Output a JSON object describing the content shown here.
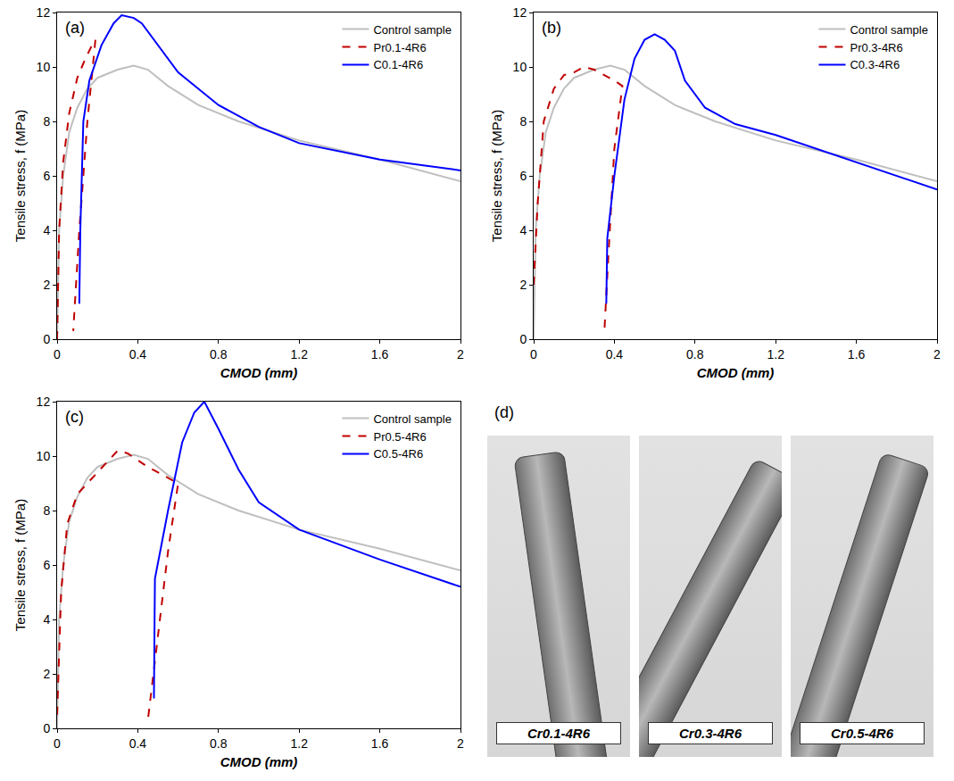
{
  "chart_data": [
    {
      "type": "line",
      "title": "(a)",
      "x_label": "CMOD (mm)",
      "y_label": "Tensile stress, f (MPa)",
      "xlim": [
        0,
        2
      ],
      "xticks": [
        0,
        0.4,
        0.8,
        1.2,
        1.6,
        2
      ],
      "ylim": [
        0,
        12
      ],
      "yticks": [
        0,
        2,
        4,
        6,
        8,
        10,
        12
      ],
      "grid": false,
      "legend": "top-right",
      "series": [
        {
          "name": "Control sample",
          "color": "#bfbfbf",
          "line_style": "solid",
          "x": [
            0,
            0.01,
            0.03,
            0.06,
            0.1,
            0.15,
            0.2,
            0.3,
            0.38,
            0.45,
            0.55,
            0.7,
            0.9,
            1.2,
            1.6,
            2.0
          ],
          "values": [
            0,
            4,
            6,
            7.6,
            8.5,
            9.2,
            9.6,
            9.9,
            10.05,
            9.9,
            9.3,
            8.6,
            8.0,
            7.3,
            6.6,
            5.8
          ]
        },
        {
          "name": "Pr0.1-4R6",
          "color": "#c00000",
          "line_style": "dashed",
          "x": [
            0,
            0.01,
            0.03,
            0.06,
            0.1,
            0.14,
            0.18,
            0.19,
            0.15,
            0.11,
            0.08
          ],
          "values": [
            0,
            4,
            6.5,
            8.3,
            9.6,
            10.3,
            10.9,
            11.0,
            8,
            4,
            0.3
          ]
        },
        {
          "name": "C0.1-4R6",
          "color": "#0000ff",
          "line_style": "solid",
          "x": [
            0.11,
            0.115,
            0.13,
            0.16,
            0.22,
            0.28,
            0.32,
            0.38,
            0.42,
            0.5,
            0.6,
            0.8,
            1.0,
            1.2,
            1.6,
            2.0
          ],
          "values": [
            1.3,
            4,
            8,
            9.5,
            10.8,
            11.6,
            11.9,
            11.8,
            11.6,
            10.8,
            9.8,
            8.6,
            7.8,
            7.2,
            6.6,
            6.2
          ]
        }
      ]
    },
    {
      "type": "line",
      "title": "(b)",
      "x_label": "CMOD (mm)",
      "y_label": "Tensile stress, f (MPa)",
      "xlim": [
        0,
        2
      ],
      "xticks": [
        0,
        0.4,
        0.8,
        1.2,
        1.6,
        2
      ],
      "ylim": [
        0,
        12
      ],
      "yticks": [
        0,
        2,
        4,
        6,
        8,
        10,
        12
      ],
      "grid": false,
      "legend": "top-right",
      "series": [
        {
          "name": "Control sample",
          "color": "#bfbfbf",
          "line_style": "solid",
          "x": [
            0,
            0.01,
            0.03,
            0.06,
            0.1,
            0.15,
            0.2,
            0.3,
            0.38,
            0.45,
            0.55,
            0.7,
            0.9,
            1.2,
            1.6,
            2.0
          ],
          "values": [
            0,
            4,
            6,
            7.6,
            8.5,
            9.2,
            9.6,
            9.9,
            10.05,
            9.9,
            9.3,
            8.6,
            8.0,
            7.3,
            6.6,
            5.8
          ]
        },
        {
          "name": "Pr0.3-4R6",
          "color": "#c00000",
          "line_style": "dashed",
          "x": [
            0,
            0.02,
            0.05,
            0.1,
            0.15,
            0.2,
            0.25,
            0.3,
            0.35,
            0.4,
            0.44,
            0.4,
            0.37,
            0.35
          ],
          "values": [
            2,
            5,
            8,
            9.2,
            9.7,
            9.8,
            10.0,
            9.9,
            9.7,
            9.5,
            9.3,
            7,
            3,
            0.2
          ]
        },
        {
          "name": "C0.3-4R6",
          "color": "#0000ff",
          "line_style": "solid",
          "x": [
            0.36,
            0.365,
            0.4,
            0.45,
            0.5,
            0.55,
            0.6,
            0.65,
            0.7,
            0.75,
            0.85,
            1.0,
            1.2,
            1.6,
            2.0
          ],
          "values": [
            1.3,
            3.7,
            6,
            8.8,
            10.3,
            11,
            11.2,
            11.0,
            10.6,
            9.5,
            8.5,
            7.9,
            7.5,
            6.5,
            5.5
          ]
        }
      ]
    },
    {
      "type": "line",
      "title": "(c)",
      "x_label": "CMOD (mm)",
      "y_label": "Tensile stress, f (MPa)",
      "xlim": [
        0,
        2
      ],
      "xticks": [
        0,
        0.4,
        0.8,
        1.2,
        1.6,
        2
      ],
      "ylim": [
        0,
        12
      ],
      "yticks": [
        0,
        2,
        4,
        6,
        8,
        10,
        12
      ],
      "grid": false,
      "legend": "top-right",
      "series": [
        {
          "name": "Control sample",
          "color": "#bfbfbf",
          "line_style": "solid",
          "x": [
            0,
            0.01,
            0.03,
            0.06,
            0.1,
            0.15,
            0.2,
            0.3,
            0.38,
            0.45,
            0.55,
            0.7,
            0.9,
            1.2,
            1.6,
            2.0
          ],
          "values": [
            0,
            4,
            6,
            7.6,
            8.5,
            9.2,
            9.6,
            9.9,
            10.05,
            9.9,
            9.3,
            8.6,
            8.0,
            7.3,
            6.6,
            5.8
          ]
        },
        {
          "name": "Pr0.5-4R6",
          "color": "#c00000",
          "line_style": "dashed",
          "x": [
            0,
            0.02,
            0.05,
            0.1,
            0.2,
            0.3,
            0.35,
            0.45,
            0.55,
            0.6,
            0.55,
            0.5,
            0.45
          ],
          "values": [
            0.5,
            5,
            7.5,
            8.6,
            9.4,
            10.2,
            10.1,
            9.6,
            9.2,
            9.0,
            6.5,
            3.5,
            0.3
          ]
        },
        {
          "name": "C0.5-4R6",
          "color": "#0000ff",
          "line_style": "solid",
          "x": [
            0.48,
            0.485,
            0.55,
            0.62,
            0.68,
            0.73,
            0.8,
            0.9,
            1.0,
            1.2,
            1.6,
            2.0
          ],
          "values": [
            1.1,
            5.5,
            8,
            10.5,
            11.6,
            12.0,
            11,
            9.5,
            8.3,
            7.3,
            6.2,
            5.2
          ]
        }
      ]
    }
  ],
  "photos": {
    "label": "(d)",
    "images": [
      "Cr0.1-4R6",
      "Cr0.3-4R6",
      "Cr0.5-4R6"
    ]
  }
}
